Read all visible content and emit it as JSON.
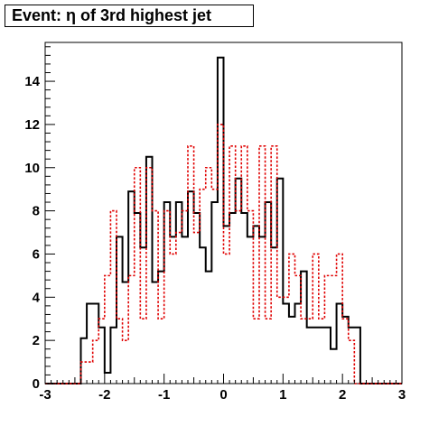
{
  "chart_data": {
    "type": "step",
    "title": "Event: η of 3rd highest jet",
    "xlabel": "",
    "ylabel": "",
    "xlim": [
      -3,
      3
    ],
    "ylim": [
      0,
      15.8
    ],
    "x_ticks": [
      "-3",
      "-2",
      "-1",
      "0",
      "1",
      "2",
      "3"
    ],
    "y_ticks": [
      "0",
      "2",
      "4",
      "6",
      "8",
      "10",
      "12",
      "14"
    ],
    "bin_edges": [
      -3.0,
      -2.4,
      -2.3,
      -2.2,
      -2.1,
      -2.0,
      -1.9,
      -1.8,
      -1.7,
      -1.6,
      -1.5,
      -1.4,
      -1.3,
      -1.2,
      -1.1,
      -1.0,
      -0.9,
      -0.8,
      -0.7,
      -0.6,
      -0.5,
      -0.4,
      -0.3,
      -0.2,
      -0.1,
      0.0,
      0.1,
      0.2,
      0.3,
      0.4,
      0.5,
      0.6,
      0.7,
      0.8,
      0.9,
      1.0,
      1.1,
      1.2,
      1.3,
      1.4,
      1.5,
      1.6,
      1.7,
      1.8,
      1.9,
      2.0,
      2.1,
      2.2,
      2.3,
      2.4,
      3.0
    ],
    "series": [
      {
        "color": "#000000",
        "style": "solid",
        "values": [
          0,
          2.1,
          3.7,
          3.7,
          2.6,
          0.5,
          2.6,
          6.8,
          4.7,
          8.9,
          7.9,
          6.3,
          10.5,
          4.7,
          5.2,
          8.4,
          6.8,
          8.4,
          6.8,
          8.9,
          7.9,
          6.3,
          5.2,
          8.4,
          15.1,
          7.3,
          7.9,
          9.5,
          7.9,
          6.8,
          7.3,
          6.8,
          8.4,
          6.3,
          9.5,
          3.7,
          3.1,
          3.7,
          5.2,
          2.6,
          2.6,
          2.6,
          2.6,
          1.6,
          3.7,
          3.1,
          2.6,
          2.6,
          0,
          0
        ]
      },
      {
        "color": "#e00000",
        "style": "dashed",
        "values": [
          0,
          1.0,
          1.0,
          2.0,
          3.0,
          5.0,
          8.0,
          3.0,
          2.0,
          5.0,
          10.0,
          3.0,
          10.0,
          8.0,
          3.0,
          8.0,
          6.0,
          7.0,
          8.0,
          11.0,
          7.0,
          9.0,
          10.0,
          9.0,
          12.0,
          6.0,
          11.0,
          8.0,
          11.0,
          8.0,
          3.0,
          11.0,
          3.0,
          11.0,
          4.0,
          4.0,
          6.0,
          5.0,
          3.0,
          3.0,
          6.0,
          3.0,
          5.0,
          5.0,
          6.0,
          3.0,
          2.0,
          0,
          0,
          0
        ]
      }
    ]
  }
}
